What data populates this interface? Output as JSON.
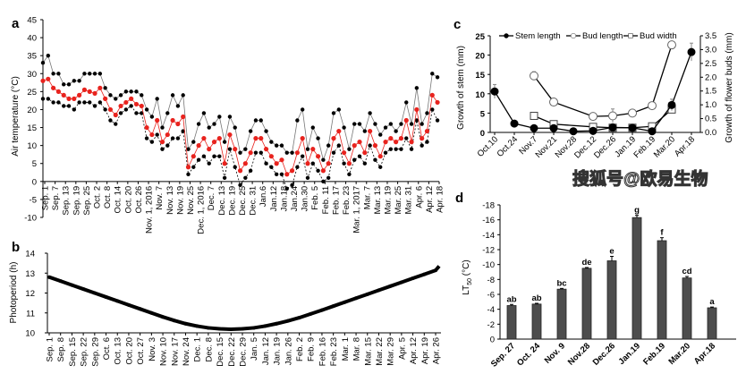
{
  "chart_data": [
    {
      "panel": "a",
      "type": "line",
      "ylabel": "Air temperature (°C)",
      "ylim": [
        -10,
        45
      ],
      "yticks": [
        -10,
        -5,
        0,
        5,
        10,
        15,
        20,
        25,
        30,
        35,
        40,
        45
      ],
      "xticklabels": [
        "Sep. 1",
        "Sep. 7",
        "Sep. 13",
        "Sep. 19",
        "Sep. 25",
        "Oct. 2",
        "Oct. 8",
        "Oct. 14",
        "Oct. 20",
        "Oct. 26",
        "Nov. 1, 2016",
        "Nov. 7",
        "Nov. 13",
        "Nov. 19",
        "Nov. 25",
        "Dec. 1, 2016",
        "Dec. 7",
        "Dec. 13",
        "Dec. 19",
        "Dec. 25",
        "Dec. 31",
        "Jan.6",
        "Jan.12",
        "Jan.18",
        "Jan.24",
        "Jan.30",
        "Feb. 5",
        "Feb. 11",
        "Feb. 17",
        "Feb. 23",
        "Mar. 1, 2017",
        "Mar. 7",
        "Mar. 13",
        "Mar. 19",
        "Mar. 25",
        "Mar. 31",
        "Apr. 6",
        "Apr. 12",
        "Apr. 18"
      ],
      "x": [
        "2016-09-01",
        "2016-09-04",
        "2016-09-07",
        "2016-09-10",
        "2016-09-13",
        "2016-09-16",
        "2016-09-19",
        "2016-09-22",
        "2016-09-25",
        "2016-09-28",
        "2016-10-01",
        "2016-10-04",
        "2016-10-07",
        "2016-10-10",
        "2016-10-13",
        "2016-10-16",
        "2016-10-19",
        "2016-10-22",
        "2016-10-25",
        "2016-10-28",
        "2016-10-31",
        "2016-11-03",
        "2016-11-06",
        "2016-11-09",
        "2016-11-12",
        "2016-11-15",
        "2016-11-18",
        "2016-11-21",
        "2016-11-24",
        "2016-11-27",
        "2016-11-30",
        "2016-12-03",
        "2016-12-06",
        "2016-12-09",
        "2016-12-12",
        "2016-12-15",
        "2016-12-18",
        "2016-12-21",
        "2016-12-24",
        "2016-12-27",
        "2016-12-30",
        "2017-01-02",
        "2017-01-05",
        "2017-01-08",
        "2017-01-11",
        "2017-01-14",
        "2017-01-17",
        "2017-01-20",
        "2017-01-23",
        "2017-01-26",
        "2017-01-29",
        "2017-02-01",
        "2017-02-04",
        "2017-02-07",
        "2017-02-10",
        "2017-02-13",
        "2017-02-16",
        "2017-02-19",
        "2017-02-22",
        "2017-02-25",
        "2017-02-28",
        "2017-03-03",
        "2017-03-06",
        "2017-03-09",
        "2017-03-12",
        "2017-03-15",
        "2017-03-18",
        "2017-03-21",
        "2017-03-24",
        "2017-03-27",
        "2017-03-30",
        "2017-04-02",
        "2017-04-05",
        "2017-04-08",
        "2017-04-11",
        "2017-04-14",
        "2017-04-17"
      ],
      "series": [
        {
          "values": [
            33,
            35,
            30,
            30,
            27,
            27,
            28,
            28,
            30,
            30,
            30,
            30,
            26,
            24,
            23,
            24,
            25,
            25,
            25,
            24,
            20,
            18,
            23,
            15,
            19,
            24,
            21,
            24,
            9,
            11,
            16,
            19,
            15,
            16,
            18,
            11,
            18,
            15,
            8,
            9,
            14,
            17,
            17,
            14,
            11,
            10,
            10,
            8,
            8,
            17,
            20,
            9,
            15,
            12,
            6,
            10,
            19,
            20,
            15,
            9,
            16,
            16,
            14,
            19,
            16,
            13,
            15,
            16,
            14,
            16,
            22,
            16,
            26,
            16,
            19,
            30,
            29
          ],
          "color": "#000000",
          "style": "solid-gray-line-black-dots"
        },
        {
          "values": [
            28,
            28.5,
            26,
            25,
            24,
            23,
            23,
            24,
            25.5,
            25,
            24.5,
            26,
            23,
            20,
            18.5,
            21,
            22,
            23,
            21.5,
            21,
            15,
            13,
            17,
            11,
            13,
            17,
            16,
            18,
            4,
            7,
            10,
            12,
            9,
            11,
            12,
            5,
            13,
            9,
            3,
            5,
            8,
            12,
            12,
            9,
            7,
            5,
            6,
            2,
            3,
            8,
            12,
            5,
            9,
            7,
            3,
            5,
            12,
            14,
            8,
            5,
            10,
            11,
            8,
            14,
            10,
            7,
            11,
            12,
            11,
            12,
            17,
            11,
            20,
            12,
            14,
            24,
            22
          ],
          "color": "#e8231e",
          "style": "solid"
        },
        {
          "values": [
            23,
            23,
            22,
            22,
            21,
            21,
            20,
            22,
            22,
            22,
            21,
            22,
            20,
            17,
            16,
            19,
            20,
            21,
            19,
            19,
            12,
            11,
            13,
            9,
            10,
            12,
            12,
            14,
            2,
            4,
            6,
            7,
            5,
            7,
            7,
            1,
            9,
            4,
            -1,
            1,
            3,
            8,
            8,
            5,
            4,
            2,
            2,
            -2,
            -1,
            4,
            7,
            1,
            5,
            3,
            0,
            1,
            8,
            10,
            5,
            2,
            6,
            7,
            5,
            10,
            6,
            4,
            8,
            9,
            9,
            9,
            12,
            9,
            17,
            10,
            11,
            20,
            17
          ],
          "color": "#000000",
          "style": "dashed"
        }
      ]
    },
    {
      "panel": "b",
      "type": "line",
      "ylabel": "Photoperiod (h)",
      "ylim": [
        10,
        14
      ],
      "yticks": [
        10,
        11,
        12,
        13,
        14
      ],
      "categories": [
        "Sep. 1",
        "Sep. 8",
        "Sep. 15",
        "Sep. 22",
        "Sep. 29",
        "Oct. 6",
        "Oct. 13",
        "Oct. 20",
        "Oct. 27",
        "Nov. 3",
        "Nov. 10",
        "Nov. 17",
        "Nov. 24",
        "Dec. 1",
        "Dec. 8",
        "Dec. 15",
        "Dec. 22",
        "Dec. 29",
        "Jan. 5",
        "Jan. 12",
        "Jan. 19",
        "Jan. 26",
        "Feb. 2",
        "Feb. 9",
        "Feb. 16",
        "Feb. 23",
        "Mar. 1",
        "Mar. 8",
        "Mar. 15",
        "Mar. 22",
        "Mar. 29",
        "Apr. 5",
        "Apr. 12",
        "Apr. 19",
        "Apr. 26"
      ],
      "values": [
        12.8,
        12.6,
        12.4,
        12.2,
        12.0,
        11.8,
        11.6,
        11.4,
        11.2,
        11.0,
        10.8,
        10.62,
        10.46,
        10.34,
        10.25,
        10.2,
        10.18,
        10.2,
        10.25,
        10.34,
        10.46,
        10.6,
        10.76,
        10.95,
        11.14,
        11.34,
        11.54,
        11.74,
        11.94,
        12.14,
        12.34,
        12.54,
        12.74,
        12.94,
        13.14
      ],
      "color": "#000000"
    },
    {
      "panel": "c",
      "type": "line",
      "ylabel": "Growth of stem (mm)",
      "ylabel_right": "Growth of flower buds (mm)",
      "ylim": [
        0,
        25
      ],
      "yticks": [
        0,
        5,
        10,
        15,
        20,
        25
      ],
      "ylim_right": [
        0,
        3.5
      ],
      "yticks_right": [
        "0.0",
        "0.5",
        "1.0",
        "1.5",
        "2.0",
        "2.5",
        "3.0",
        "3.5"
      ],
      "categories": [
        "Oct.10",
        "Oct.24",
        "Nov.7",
        "Nov.21",
        "Nov.28",
        "Dec.12",
        "Dec.26",
        "Jan.19",
        "Feb.19",
        "Mar.20",
        "Apr.18"
      ],
      "legend": "top",
      "series": [
        {
          "name": "Stem length",
          "axis": "left",
          "marker": "filled-circle",
          "values": [
            10.6,
            2.3,
            1.1,
            1.1,
            0.3,
            0.4,
            1.3,
            1.2,
            0.3,
            7.1,
            20.8
          ],
          "errors": [
            1.8,
            0.3,
            0.2,
            0.2,
            0.1,
            0.1,
            0.3,
            0.2,
            0.1,
            1.5,
            2.3
          ]
        },
        {
          "name": "Bud length",
          "axis": "right",
          "marker": "open-circle",
          "values": [
            null,
            null,
            2.05,
            1.1,
            null,
            0.58,
            0.6,
            0.7,
            0.97,
            3.17,
            null
          ],
          "errors": [
            null,
            null,
            0.15,
            0.1,
            null,
            0.08,
            0.25,
            0.04,
            0.05,
            0.05,
            null
          ]
        },
        {
          "name": "Bud width",
          "axis": "right",
          "marker": "open-square",
          "values": [
            null,
            null,
            0.6,
            0.3,
            null,
            0.2,
            0.17,
            0.17,
            0.22,
            0.83,
            null
          ],
          "errors": [
            null,
            null,
            0.04,
            0.03,
            null,
            0.03,
            0.03,
            0.02,
            0.03,
            0.05,
            null
          ]
        }
      ]
    },
    {
      "panel": "d",
      "type": "bar",
      "ylabel": "LT50 (°C)",
      "ylim": [
        0,
        -18
      ],
      "yticks": [
        0,
        -2,
        -4,
        -6,
        -8,
        -10,
        -12,
        -14,
        -16,
        -18
      ],
      "categories": [
        "Sep. 27",
        "Oct. 24",
        "Nov. 9",
        "Nov.28",
        "Dec.26",
        "Jan.19",
        "Feb.19",
        "Mar.20",
        "Apr.18"
      ],
      "values": [
        -4.5,
        -4.7,
        -6.7,
        -9.5,
        -10.5,
        -16.3,
        -13.2,
        -8.2,
        -4.2
      ],
      "errors": [
        0.15,
        0.1,
        0.1,
        0.1,
        0.6,
        0.3,
        0.4,
        0.2,
        0.1
      ],
      "letters": [
        "ab",
        "ab",
        "bc",
        "de",
        "e",
        "g",
        "f",
        "cd",
        "a"
      ],
      "color": "#4d4d4d"
    }
  ],
  "panel_labels": [
    "a",
    "b",
    "c",
    "d"
  ],
  "labels": {
    "a_ylabel": "Air temperature (°C)",
    "b_ylabel": "Photoperiod (h)",
    "c_ylabel": "Growth of stem (mm)",
    "c_ylabel_right": "Growth of flower buds (mm)",
    "d_ylabel_main": "LT",
    "d_ylabel_sub": "50",
    "d_ylabel_unit": " (°C)"
  },
  "watermark": "搜狐号@欧易生物"
}
